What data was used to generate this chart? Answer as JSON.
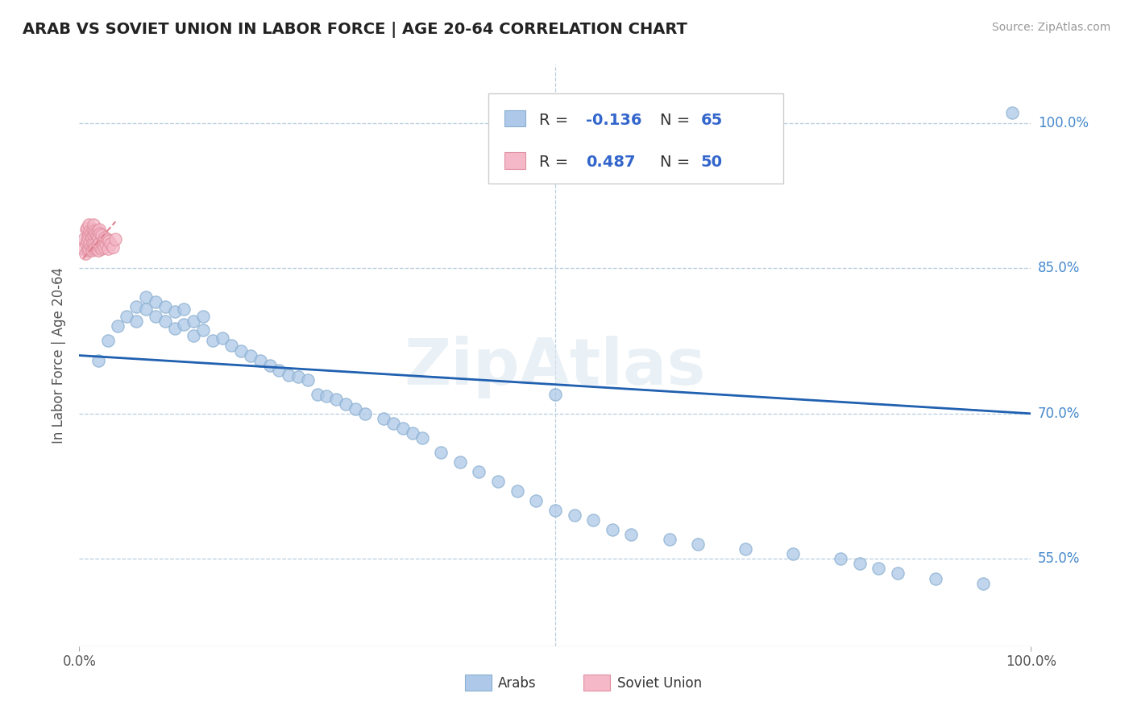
{
  "title": "ARAB VS SOVIET UNION IN LABOR FORCE | AGE 20-64 CORRELATION CHART",
  "source": "Source: ZipAtlas.com",
  "ylabel": "In Labor Force | Age 20-64",
  "xlim": [
    0.0,
    1.0
  ],
  "ylim": [
    0.46,
    1.06
  ],
  "yticks": [
    0.55,
    0.7,
    0.85,
    1.0
  ],
  "ytick_labels": [
    "55.0%",
    "70.0%",
    "85.0%",
    "100.0%"
  ],
  "xtick_labels": [
    "0.0%",
    "100.0%"
  ],
  "arab_color": "#adc8e8",
  "soviet_color": "#f5b8c8",
  "soviet_line_color": "#e05070",
  "trend_color": "#2060b0",
  "legend_arab_R": "-0.136",
  "legend_arab_N": "65",
  "legend_soviet_R": "0.487",
  "legend_soviet_N": "50",
  "watermark": "ZipAtlas",
  "arab_x": [
    0.02,
    0.03,
    0.04,
    0.05,
    0.06,
    0.06,
    0.07,
    0.07,
    0.08,
    0.08,
    0.09,
    0.09,
    0.1,
    0.1,
    0.11,
    0.11,
    0.12,
    0.12,
    0.13,
    0.13,
    0.14,
    0.15,
    0.16,
    0.17,
    0.18,
    0.19,
    0.2,
    0.21,
    0.22,
    0.23,
    0.24,
    0.25,
    0.26,
    0.27,
    0.28,
    0.29,
    0.3,
    0.32,
    0.33,
    0.34,
    0.35,
    0.36,
    0.38,
    0.4,
    0.42,
    0.44,
    0.46,
    0.48,
    0.5,
    0.52,
    0.54,
    0.56,
    0.58,
    0.62,
    0.65,
    0.7,
    0.75,
    0.8,
    0.82,
    0.84,
    0.86,
    0.9,
    0.95,
    0.98,
    0.5
  ],
  "arab_y": [
    0.755,
    0.775,
    0.79,
    0.8,
    0.81,
    0.795,
    0.808,
    0.82,
    0.8,
    0.815,
    0.795,
    0.81,
    0.788,
    0.805,
    0.792,
    0.808,
    0.78,
    0.795,
    0.786,
    0.8,
    0.775,
    0.778,
    0.77,
    0.765,
    0.76,
    0.755,
    0.75,
    0.745,
    0.74,
    0.738,
    0.735,
    0.72,
    0.718,
    0.715,
    0.71,
    0.705,
    0.7,
    0.695,
    0.69,
    0.685,
    0.68,
    0.675,
    0.66,
    0.65,
    0.64,
    0.63,
    0.62,
    0.61,
    0.6,
    0.595,
    0.59,
    0.58,
    0.575,
    0.57,
    0.565,
    0.56,
    0.555,
    0.55,
    0.545,
    0.54,
    0.535,
    0.53,
    0.525,
    1.01,
    0.72
  ],
  "soviet_x": [
    0.004,
    0.005,
    0.006,
    0.007,
    0.007,
    0.008,
    0.008,
    0.009,
    0.009,
    0.01,
    0.01,
    0.01,
    0.011,
    0.011,
    0.012,
    0.012,
    0.013,
    0.013,
    0.014,
    0.014,
    0.015,
    0.015,
    0.015,
    0.016,
    0.016,
    0.017,
    0.017,
    0.018,
    0.018,
    0.019,
    0.019,
    0.02,
    0.02,
    0.021,
    0.021,
    0.022,
    0.022,
    0.023,
    0.023,
    0.024,
    0.025,
    0.026,
    0.027,
    0.028,
    0.029,
    0.03,
    0.031,
    0.033,
    0.035,
    0.038
  ],
  "soviet_y": [
    0.87,
    0.88,
    0.865,
    0.875,
    0.89,
    0.878,
    0.892,
    0.868,
    0.882,
    0.87,
    0.885,
    0.895,
    0.875,
    0.888,
    0.872,
    0.886,
    0.868,
    0.882,
    0.876,
    0.89,
    0.87,
    0.884,
    0.895,
    0.875,
    0.888,
    0.872,
    0.886,
    0.87,
    0.884,
    0.874,
    0.888,
    0.868,
    0.882,
    0.876,
    0.89,
    0.872,
    0.886,
    0.87,
    0.884,
    0.875,
    0.878,
    0.872,
    0.882,
    0.875,
    0.88,
    0.87,
    0.878,
    0.875,
    0.872,
    0.88
  ],
  "trend_x_start": 0.0,
  "trend_x_end": 1.0,
  "trend_y_start": 0.76,
  "trend_y_end": 0.7,
  "soviet_trend_x": [
    0.004,
    0.038
  ],
  "soviet_trend_y": [
    0.86,
    0.898
  ],
  "dashed_trend_color": "#e08090"
}
